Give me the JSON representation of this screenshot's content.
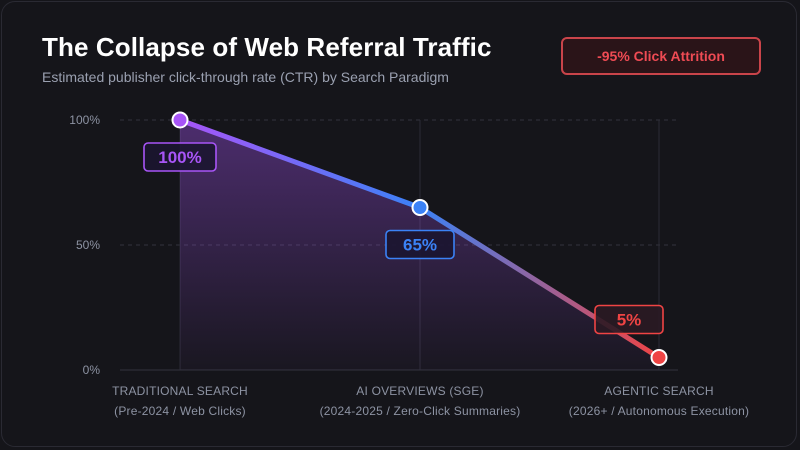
{
  "header": {
    "title": "The Collapse of Web Referral Traffic",
    "subtitle": "Estimated publisher click-through rate (CTR) by Search Paradigm",
    "badge": "-95% Click Attrition"
  },
  "colors": {
    "accent_purple": "#a855f7",
    "accent_blue": "#3b82f6",
    "accent_red": "#ef4444",
    "badge_border": "#c9444a"
  },
  "chart_data": {
    "type": "line",
    "title": "The Collapse of Web Referral Traffic",
    "subtitle": "Estimated publisher click-through rate (CTR) by Search Paradigm",
    "categories": [
      {
        "name": "TRADITIONAL SEARCH",
        "detail": "(Pre-2024 / Web Clicks)"
      },
      {
        "name": "AI OVERVIEWS (SGE)",
        "detail": "(2024-2025 / Zero-Click Summaries)"
      },
      {
        "name": "AGENTIC SEARCH",
        "detail": "(2026+ / Autonomous Execution)"
      }
    ],
    "values": [
      100,
      65,
      5
    ],
    "data_labels": [
      "100%",
      "65%",
      "5%"
    ],
    "point_colors": [
      "#a855f7",
      "#3b82f6",
      "#ef4444"
    ],
    "ylim": [
      0,
      100
    ],
    "yticks": [
      {
        "value": 0,
        "label": "0%"
      },
      {
        "value": 50,
        "label": "50%"
      },
      {
        "value": 100,
        "label": "100%"
      }
    ],
    "grid": true
  }
}
